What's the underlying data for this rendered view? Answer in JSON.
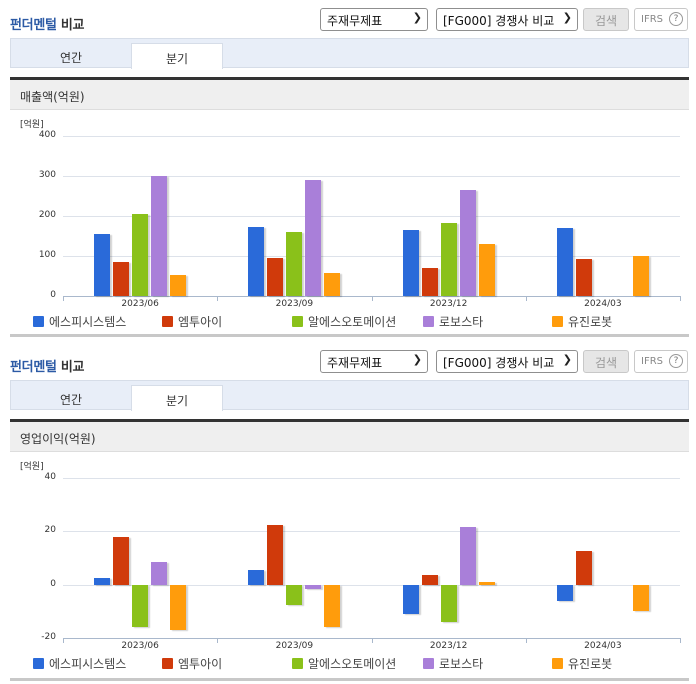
{
  "colors": {
    "accent_title": "#2c5aa5",
    "series": [
      "#2a6ad9",
      "#d03a0b",
      "#8ac11a",
      "#a97fd9",
      "#ff9c0c"
    ]
  },
  "panels": [
    {
      "title_accent": "펀더멘털",
      "title_rest": " 비교",
      "select1": "주재무제표",
      "select2": "[FG000] 경쟁사 비교",
      "search_label": "검색",
      "ifrs_label": "IFRS",
      "help_glyph": "?",
      "tabs": [
        {
          "label": "연간"
        },
        {
          "label": "분기",
          "active": true
        }
      ],
      "subtitle": "매출액(억원)",
      "unit": "[억원]"
    },
    {
      "title_accent": "펀더멘털",
      "title_rest": " 비교",
      "select1": "주재무제표",
      "select2": "[FG000] 경쟁사 비교",
      "search_label": "검색",
      "ifrs_label": "IFRS",
      "help_glyph": "?",
      "tabs": [
        {
          "label": "연간"
        },
        {
          "label": "분기",
          "active": true
        }
      ],
      "subtitle": "영업이익(억원)",
      "unit": "[억원]"
    }
  ],
  "legend": [
    "에스피시스템스",
    "엠투아이",
    "알에스오토메이션",
    "로보스타",
    "유진로봇"
  ],
  "chart_data": [
    {
      "type": "bar",
      "title": "매출액(억원)",
      "xlabel": "",
      "ylabel": "[억원]",
      "ylim": [
        0,
        400
      ],
      "yticks": [
        0,
        100,
        200,
        300,
        400
      ],
      "grid": true,
      "legend_position": "bottom",
      "categories": [
        "2023/06",
        "2023/09",
        "2023/12",
        "2024/03"
      ],
      "series": [
        {
          "name": "에스피시스템스",
          "values": [
            155,
            173,
            165,
            170
          ]
        },
        {
          "name": "엠투아이",
          "values": [
            85,
            95,
            70,
            93
          ]
        },
        {
          "name": "알에스오토메이션",
          "values": [
            205,
            160,
            183,
            null
          ]
        },
        {
          "name": "로보스타",
          "values": [
            300,
            290,
            265,
            null
          ]
        },
        {
          "name": "유진로봇",
          "values": [
            53,
            57,
            130,
            100
          ]
        }
      ]
    },
    {
      "type": "bar",
      "title": "영업이익(억원)",
      "xlabel": "",
      "ylabel": "[억원]",
      "ylim": [
        -20,
        40
      ],
      "yticks": [
        -20,
        0,
        20,
        40
      ],
      "grid": true,
      "legend_position": "bottom",
      "categories": [
        "2023/06",
        "2023/09",
        "2023/12",
        "2024/03"
      ],
      "series": [
        {
          "name": "에스피시스템스",
          "values": [
            2.5,
            5.5,
            -11,
            -6
          ]
        },
        {
          "name": "엠투아이",
          "values": [
            18,
            22.5,
            3.5,
            12.5
          ]
        },
        {
          "name": "알에스오토메이션",
          "values": [
            -16,
            -7.5,
            -14,
            null
          ]
        },
        {
          "name": "로보스타",
          "values": [
            8.5,
            -1.5,
            21.5,
            null
          ]
        },
        {
          "name": "유진로봇",
          "values": [
            -17,
            -16,
            1,
            -10
          ]
        }
      ]
    }
  ]
}
